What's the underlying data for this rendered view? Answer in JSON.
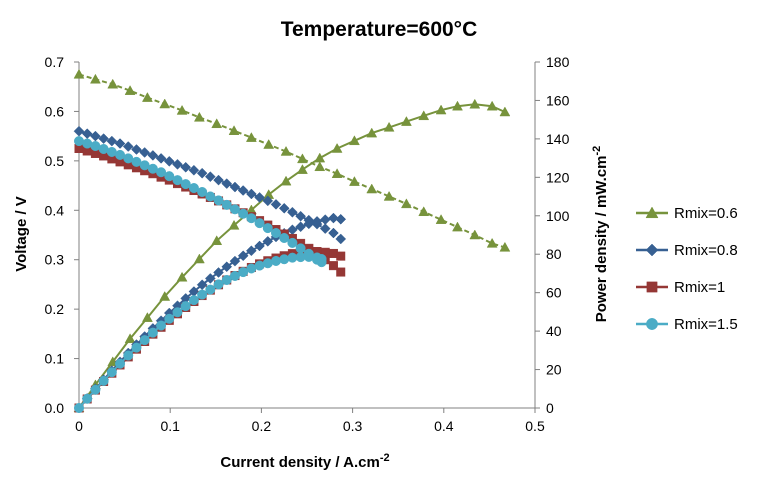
{
  "chart_data": {
    "type": "line",
    "title": "Temperature=600°C",
    "xlabel": "Current density / A.cm",
    "xlabel_sup": "-2",
    "ylabel_left": "Voltage / V",
    "ylabel_right": "Power density / mW.cm",
    "ylabel_right_sup": "-2",
    "xlim": [
      0,
      0.5
    ],
    "ylim_left": [
      0,
      0.7
    ],
    "ylim_right": [
      0,
      180
    ],
    "x_ticks": [
      "0",
      "0.1",
      "0.2",
      "0.3",
      "0.4",
      "0.5"
    ],
    "y_left_ticks": [
      "0.0",
      "0.1",
      "0.2",
      "0.3",
      "0.4",
      "0.5",
      "0.6",
      "0.7"
    ],
    "y_right_ticks": [
      "0",
      "20",
      "40",
      "60",
      "80",
      "100",
      "120",
      "140",
      "160",
      "180"
    ],
    "grid": false,
    "legend_position": "right",
    "series": [
      {
        "name": "Rmix=0.6",
        "color": "#77933C",
        "marker": "triangle",
        "voltage": [
          [
            0,
            0.675
          ],
          [
            0.018,
            0.665
          ],
          [
            0.037,
            0.655
          ],
          [
            0.056,
            0.642
          ],
          [
            0.075,
            0.628
          ],
          [
            0.094,
            0.615
          ],
          [
            0.113,
            0.602
          ],
          [
            0.132,
            0.588
          ],
          [
            0.151,
            0.575
          ],
          [
            0.17,
            0.561
          ],
          [
            0.189,
            0.547
          ],
          [
            0.208,
            0.533
          ],
          [
            0.227,
            0.519
          ],
          [
            0.245,
            0.504
          ],
          [
            0.264,
            0.488
          ],
          [
            0.283,
            0.474
          ],
          [
            0.302,
            0.458
          ],
          [
            0.321,
            0.443
          ],
          [
            0.34,
            0.428
          ],
          [
            0.359,
            0.413
          ],
          [
            0.378,
            0.397
          ],
          [
            0.397,
            0.381
          ],
          [
            0.415,
            0.366
          ],
          [
            0.434,
            0.35
          ],
          [
            0.453,
            0.333
          ],
          [
            0.467,
            0.325
          ]
        ],
        "power": [
          [
            0,
            0
          ],
          [
            0.018,
            12
          ],
          [
            0.037,
            24
          ],
          [
            0.056,
            36
          ],
          [
            0.075,
            47
          ],
          [
            0.094,
            58
          ],
          [
            0.113,
            68
          ],
          [
            0.132,
            77.5
          ],
          [
            0.151,
            87
          ],
          [
            0.17,
            95
          ],
          [
            0.189,
            103
          ],
          [
            0.208,
            111
          ],
          [
            0.227,
            118
          ],
          [
            0.245,
            124
          ],
          [
            0.264,
            130
          ],
          [
            0.283,
            135
          ],
          [
            0.302,
            139
          ],
          [
            0.321,
            143
          ],
          [
            0.34,
            146
          ],
          [
            0.359,
            149
          ],
          [
            0.378,
            152
          ],
          [
            0.397,
            155
          ],
          [
            0.415,
            157
          ],
          [
            0.434,
            158
          ],
          [
            0.453,
            157
          ],
          [
            0.467,
            154
          ]
        ]
      },
      {
        "name": "Rmix=0.8",
        "color": "#376092",
        "marker": "diamond",
        "voltage": [
          [
            0,
            0.56
          ],
          [
            0.009,
            0.555
          ],
          [
            0.018,
            0.55
          ],
          [
            0.027,
            0.545
          ],
          [
            0.036,
            0.54
          ],
          [
            0.045,
            0.535
          ],
          [
            0.054,
            0.529
          ],
          [
            0.063,
            0.523
          ],
          [
            0.072,
            0.517
          ],
          [
            0.081,
            0.511
          ],
          [
            0.09,
            0.505
          ],
          [
            0.099,
            0.499
          ],
          [
            0.108,
            0.493
          ],
          [
            0.117,
            0.487
          ],
          [
            0.126,
            0.481
          ],
          [
            0.135,
            0.475
          ],
          [
            0.144,
            0.468
          ],
          [
            0.153,
            0.461
          ],
          [
            0.162,
            0.454
          ],
          [
            0.171,
            0.447
          ],
          [
            0.18,
            0.44
          ],
          [
            0.189,
            0.433
          ],
          [
            0.198,
            0.426
          ],
          [
            0.207,
            0.419
          ],
          [
            0.216,
            0.412
          ],
          [
            0.225,
            0.404
          ],
          [
            0.234,
            0.396
          ],
          [
            0.243,
            0.388
          ],
          [
            0.252,
            0.38
          ],
          [
            0.261,
            0.372
          ],
          [
            0.27,
            0.363
          ],
          [
            0.279,
            0.354
          ],
          [
            0.287,
            0.342
          ]
        ],
        "power": [
          [
            0,
            0
          ],
          [
            0.009,
            5
          ],
          [
            0.018,
            10
          ],
          [
            0.027,
            14.7
          ],
          [
            0.036,
            19.4
          ],
          [
            0.045,
            24
          ],
          [
            0.054,
            28.6
          ],
          [
            0.063,
            33
          ],
          [
            0.072,
            37.2
          ],
          [
            0.081,
            41.4
          ],
          [
            0.09,
            45.4
          ],
          [
            0.099,
            49.4
          ],
          [
            0.108,
            53.2
          ],
          [
            0.117,
            57
          ],
          [
            0.126,
            60.6
          ],
          [
            0.135,
            64.1
          ],
          [
            0.144,
            67.4
          ],
          [
            0.153,
            70.5
          ],
          [
            0.162,
            73.5
          ],
          [
            0.171,
            76.4
          ],
          [
            0.18,
            79.2
          ],
          [
            0.189,
            81.8
          ],
          [
            0.198,
            84.3
          ],
          [
            0.207,
            86.7
          ],
          [
            0.216,
            89
          ],
          [
            0.225,
            90.9
          ],
          [
            0.234,
            92.7
          ],
          [
            0.243,
            94.3
          ],
          [
            0.252,
            95.8
          ],
          [
            0.261,
            97.1
          ],
          [
            0.27,
            98
          ],
          [
            0.279,
            98.8
          ],
          [
            0.287,
            98.2
          ]
        ]
      },
      {
        "name": "Rmix=1",
        "color": "#953735",
        "marker": "square",
        "voltage": [
          [
            0,
            0.525
          ],
          [
            0.009,
            0.52
          ],
          [
            0.018,
            0.515
          ],
          [
            0.027,
            0.51
          ],
          [
            0.036,
            0.504
          ],
          [
            0.045,
            0.498
          ],
          [
            0.054,
            0.492
          ],
          [
            0.063,
            0.486
          ],
          [
            0.072,
            0.48
          ],
          [
            0.081,
            0.474
          ],
          [
            0.09,
            0.467
          ],
          [
            0.099,
            0.461
          ],
          [
            0.108,
            0.454
          ],
          [
            0.117,
            0.447
          ],
          [
            0.126,
            0.44
          ],
          [
            0.135,
            0.433
          ],
          [
            0.144,
            0.426
          ],
          [
            0.153,
            0.419
          ],
          [
            0.162,
            0.411
          ],
          [
            0.171,
            0.403
          ],
          [
            0.18,
            0.395
          ],
          [
            0.189,
            0.387
          ],
          [
            0.198,
            0.379
          ],
          [
            0.207,
            0.37
          ],
          [
            0.216,
            0.361
          ],
          [
            0.225,
            0.352
          ],
          [
            0.234,
            0.343
          ],
          [
            0.243,
            0.333
          ],
          [
            0.252,
            0.323
          ],
          [
            0.261,
            0.312
          ],
          [
            0.27,
            0.3
          ],
          [
            0.279,
            0.288
          ],
          [
            0.287,
            0.275
          ]
        ],
        "power": [
          [
            0,
            0
          ],
          [
            0.009,
            4.7
          ],
          [
            0.018,
            9.3
          ],
          [
            0.027,
            13.8
          ],
          [
            0.036,
            18.1
          ],
          [
            0.045,
            22.4
          ],
          [
            0.054,
            26.6
          ],
          [
            0.063,
            30.6
          ],
          [
            0.072,
            34.6
          ],
          [
            0.081,
            38.4
          ],
          [
            0.09,
            42
          ],
          [
            0.099,
            45.6
          ],
          [
            0.108,
            49
          ],
          [
            0.117,
            52.3
          ],
          [
            0.126,
            55.4
          ],
          [
            0.135,
            58.5
          ],
          [
            0.144,
            61.3
          ],
          [
            0.153,
            64.1
          ],
          [
            0.162,
            66.6
          ],
          [
            0.171,
            68.9
          ],
          [
            0.18,
            71.1
          ],
          [
            0.189,
            73.1
          ],
          [
            0.198,
            75
          ],
          [
            0.207,
            76.6
          ],
          [
            0.216,
            78
          ],
          [
            0.225,
            79.2
          ],
          [
            0.234,
            80.3
          ],
          [
            0.243,
            80.9
          ],
          [
            0.252,
            81.4
          ],
          [
            0.261,
            81.4
          ],
          [
            0.27,
            81
          ],
          [
            0.279,
            80.4
          ],
          [
            0.287,
            79
          ]
        ]
      },
      {
        "name": "Rmix=1.5",
        "color": "#4BACC6",
        "marker": "circle",
        "voltage": [
          [
            0,
            0.54
          ],
          [
            0.009,
            0.535
          ],
          [
            0.018,
            0.53
          ],
          [
            0.027,
            0.524
          ],
          [
            0.036,
            0.518
          ],
          [
            0.045,
            0.512
          ],
          [
            0.054,
            0.505
          ],
          [
            0.063,
            0.498
          ],
          [
            0.072,
            0.491
          ],
          [
            0.081,
            0.484
          ],
          [
            0.09,
            0.477
          ],
          [
            0.099,
            0.469
          ],
          [
            0.108,
            0.461
          ],
          [
            0.117,
            0.453
          ],
          [
            0.126,
            0.445
          ],
          [
            0.135,
            0.437
          ],
          [
            0.144,
            0.428
          ],
          [
            0.153,
            0.42
          ],
          [
            0.162,
            0.411
          ],
          [
            0.171,
            0.402
          ],
          [
            0.18,
            0.393
          ],
          [
            0.189,
            0.384
          ],
          [
            0.198,
            0.374
          ],
          [
            0.207,
            0.364
          ],
          [
            0.216,
            0.354
          ],
          [
            0.225,
            0.344
          ],
          [
            0.234,
            0.334
          ],
          [
            0.243,
            0.323
          ],
          [
            0.252,
            0.312
          ],
          [
            0.261,
            0.3
          ],
          [
            0.266,
            0.295
          ]
        ],
        "power": [
          [
            0,
            0
          ],
          [
            0.009,
            4.8
          ],
          [
            0.018,
            9.5
          ],
          [
            0.027,
            14.1
          ],
          [
            0.036,
            18.6
          ],
          [
            0.045,
            23
          ],
          [
            0.054,
            27.3
          ],
          [
            0.063,
            31.4
          ],
          [
            0.072,
            35.3
          ],
          [
            0.081,
            39.2
          ],
          [
            0.09,
            42.9
          ],
          [
            0.099,
            46.4
          ],
          [
            0.108,
            49.8
          ],
          [
            0.117,
            53
          ],
          [
            0.126,
            56.1
          ],
          [
            0.135,
            59
          ],
          [
            0.144,
            61.6
          ],
          [
            0.153,
            64.3
          ],
          [
            0.162,
            66.6
          ],
          [
            0.171,
            68.7
          ],
          [
            0.18,
            70.7
          ],
          [
            0.189,
            72.6
          ],
          [
            0.198,
            74.1
          ],
          [
            0.207,
            75.3
          ],
          [
            0.216,
            76.5
          ],
          [
            0.225,
            77.4
          ],
          [
            0.234,
            78.2
          ],
          [
            0.243,
            78.5
          ],
          [
            0.252,
            78.6
          ],
          [
            0.261,
            78.3
          ],
          [
            0.266,
            77.5
          ]
        ]
      }
    ]
  }
}
